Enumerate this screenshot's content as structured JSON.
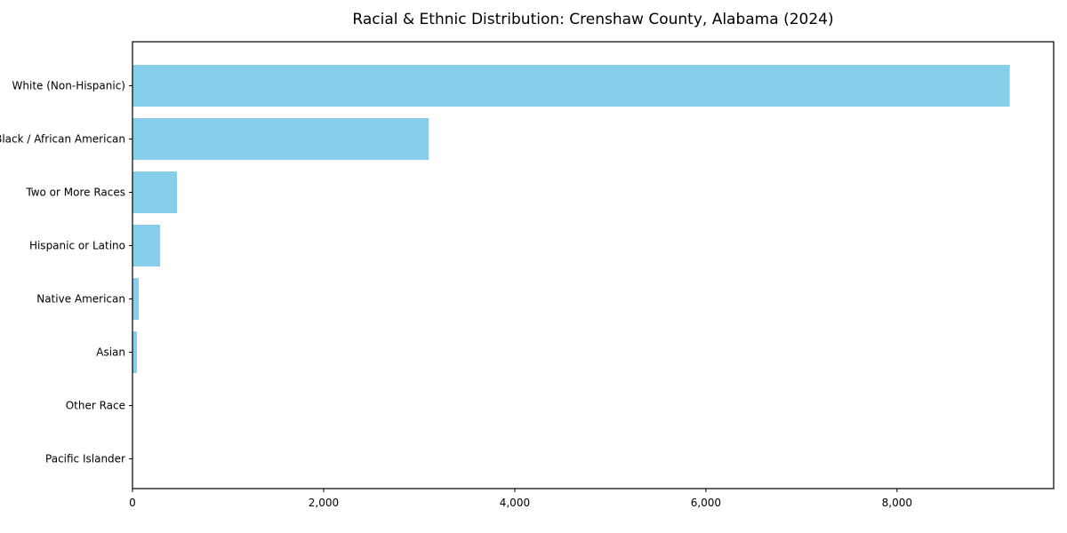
{
  "chart_data": {
    "type": "bar",
    "orientation": "horizontal",
    "title": "Racial & Ethnic Distribution: Crenshaw County, Alabama (2024)",
    "categories": [
      "White (Non-Hispanic)",
      "Black / African American",
      "Two or More Races",
      "Hispanic or Latino",
      "Native American",
      "Asian",
      "Other Race",
      "Pacific Islander"
    ],
    "values": [
      9180,
      3100,
      465,
      290,
      65,
      46,
      0,
      0
    ],
    "xlabel": "",
    "ylabel": "",
    "xlim": [
      0,
      9639
    ],
    "xticks": [
      0,
      2000,
      4000,
      6000,
      8000
    ],
    "xtick_labels": [
      "0",
      "2,000",
      "4,000",
      "6,000",
      "8,000"
    ],
    "bar_color": "#87CEEB",
    "frame_color": "#000000",
    "text_color": "#000000",
    "grid": false,
    "legend": null
  }
}
